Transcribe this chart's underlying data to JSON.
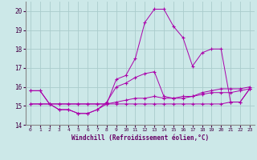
{
  "xlabel": "Windchill (Refroidissement éolien,°C)",
  "xlim": [
    -0.5,
    23.5
  ],
  "ylim": [
    14,
    20.5
  ],
  "yticks": [
    14,
    15,
    16,
    17,
    18,
    19,
    20
  ],
  "xticks": [
    0,
    1,
    2,
    3,
    4,
    5,
    6,
    7,
    8,
    9,
    10,
    11,
    12,
    13,
    14,
    15,
    16,
    17,
    18,
    19,
    20,
    21,
    22,
    23
  ],
  "background_color": "#cce8e8",
  "grid_color": "#aacccc",
  "line_color": "#aa00aa",
  "line1_x": [
    0,
    1,
    2,
    3,
    4,
    5,
    6,
    7,
    8,
    9,
    10,
    11,
    12,
    13,
    14,
    15,
    16,
    17,
    18,
    19,
    20,
    21,
    22,
    23
  ],
  "line1_y": [
    15.8,
    15.8,
    15.1,
    14.8,
    14.8,
    14.6,
    14.6,
    14.8,
    15.1,
    16.4,
    16.6,
    17.5,
    19.4,
    20.1,
    20.1,
    19.2,
    18.6,
    17.1,
    17.8,
    18.0,
    18.0,
    15.2,
    15.2,
    15.9
  ],
  "line2_x": [
    0,
    1,
    2,
    3,
    4,
    5,
    6,
    7,
    8,
    9,
    10,
    11,
    12,
    13,
    14,
    15,
    16,
    17,
    18,
    19,
    20,
    21,
    22,
    23
  ],
  "line2_y": [
    15.1,
    15.1,
    15.1,
    15.1,
    15.1,
    15.1,
    15.1,
    15.1,
    15.1,
    15.1,
    15.1,
    15.1,
    15.1,
    15.1,
    15.1,
    15.1,
    15.1,
    15.1,
    15.1,
    15.1,
    15.1,
    15.2,
    15.2,
    15.9
  ],
  "line3_x": [
    0,
    1,
    2,
    3,
    4,
    5,
    6,
    7,
    8,
    9,
    10,
    11,
    12,
    13,
    14,
    15,
    16,
    17,
    18,
    19,
    20,
    21,
    22,
    23
  ],
  "line3_y": [
    15.8,
    15.8,
    15.1,
    14.8,
    14.8,
    14.6,
    14.6,
    14.8,
    15.2,
    16.0,
    16.2,
    16.5,
    16.7,
    16.8,
    15.5,
    15.4,
    15.4,
    15.5,
    15.7,
    15.8,
    15.9,
    15.9,
    15.9,
    16.0
  ],
  "line4_x": [
    0,
    1,
    2,
    3,
    4,
    5,
    6,
    7,
    8,
    9,
    10,
    11,
    12,
    13,
    14,
    15,
    16,
    17,
    18,
    19,
    20,
    21,
    22,
    23
  ],
  "line4_y": [
    15.1,
    15.1,
    15.1,
    15.1,
    15.1,
    15.1,
    15.1,
    15.1,
    15.1,
    15.2,
    15.3,
    15.4,
    15.4,
    15.5,
    15.4,
    15.4,
    15.5,
    15.5,
    15.6,
    15.7,
    15.7,
    15.7,
    15.8,
    15.9
  ]
}
